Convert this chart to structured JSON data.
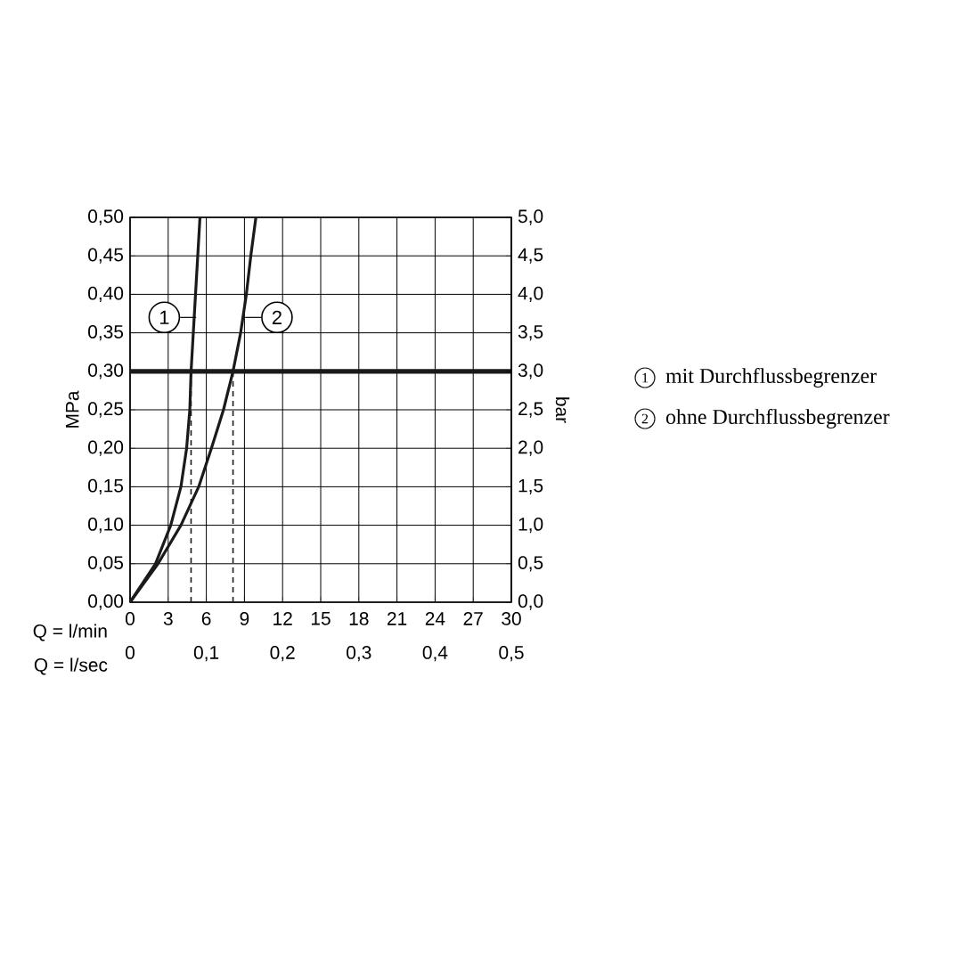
{
  "chart_data": {
    "type": "line",
    "xlabel": "Q = l/min",
    "x2label": "Q = l/sec",
    "ylabel": "MPa",
    "y2label": "bar",
    "xlim": [
      0,
      30
    ],
    "xticks": [
      0,
      3,
      6,
      9,
      12,
      15,
      18,
      21,
      24,
      27,
      30
    ],
    "x2lim": [
      0,
      0.5
    ],
    "x2ticks": [
      0,
      {
        "value": 0.1,
        "label": "0,1"
      },
      {
        "value": 0.2,
        "label": "0,2"
      },
      {
        "value": 0.3,
        "label": "0,3"
      },
      {
        "value": 0.4,
        "label": "0,4"
      },
      {
        "value": 0.5,
        "label": "0,5"
      }
    ],
    "ylim": [
      0,
      0.5
    ],
    "yticks": [
      {
        "value": 0,
        "label": "0,00"
      },
      {
        "value": 0.05,
        "label": "0,05"
      },
      {
        "value": 0.1,
        "label": "0,10"
      },
      {
        "value": 0.15,
        "label": "0,15"
      },
      {
        "value": 0.2,
        "label": "0,20"
      },
      {
        "value": 0.25,
        "label": "0,25"
      },
      {
        "value": 0.3,
        "label": "0,30"
      },
      {
        "value": 0.35,
        "label": "0,35"
      },
      {
        "value": 0.4,
        "label": "0,40"
      },
      {
        "value": 0.45,
        "label": "0,45"
      },
      {
        "value": 0.5,
        "label": "0,50"
      }
    ],
    "y2lim": [
      0,
      5
    ],
    "y2ticks": [
      {
        "value": 0,
        "label": "0,0"
      },
      {
        "value": 0.5,
        "label": "0,5"
      },
      {
        "value": 1,
        "label": "1,0"
      },
      {
        "value": 1.5,
        "label": "1,5"
      },
      {
        "value": 2,
        "label": "2,0"
      },
      {
        "value": 2.5,
        "label": "2,5"
      },
      {
        "value": 3,
        "label": "3,0"
      },
      {
        "value": 3.5,
        "label": "3,5"
      },
      {
        "value": 4,
        "label": "4,0"
      },
      {
        "value": 4.5,
        "label": "4,5"
      },
      {
        "value": 5,
        "label": "5,0"
      }
    ],
    "grid": true,
    "legend": "right",
    "marker": "none",
    "series": [
      {
        "name": "mit Durchflussbegrenzer",
        "color": "#1a1a1a",
        "x": [
          0,
          2.0,
          3.2,
          4.0,
          4.45,
          4.7,
          4.8,
          5.15,
          5.5
        ],
        "values": [
          0,
          0.05,
          0.1,
          0.15,
          0.2,
          0.25,
          0.3,
          0.4,
          0.5
        ]
      },
      {
        "name": "ohne Durchflussbegrenzer",
        "color": "#1a1a1a",
        "x": [
          0,
          2.2,
          4.0,
          5.4,
          6.4,
          7.35,
          8.1,
          8.7,
          9.15,
          9.5,
          9.9
        ],
        "values": [
          0,
          0.05,
          0.1,
          0.15,
          0.2,
          0.25,
          0.3,
          0.35,
          0.4,
          0.45,
          0.5
        ]
      },
      {
        "color": "#1a1a1a",
        "line_style": "dashed",
        "x": [
          4.8,
          4.8
        ],
        "values": [
          0,
          0.3
        ]
      },
      {
        "color": "#1a1a1a",
        "line_style": "dashed",
        "x": [
          8.1,
          8.1
        ],
        "values": [
          0,
          0.3
        ]
      }
    ],
    "ref_lines": [
      {
        "axis": "y",
        "value": 0.3,
        "color": "#1a1a1a"
      }
    ],
    "annotations": [
      {
        "text": "1",
        "x": 5.2,
        "y": 0.37
      },
      {
        "text": "2",
        "x": 9.05,
        "y": 0.37
      }
    ]
  }
}
